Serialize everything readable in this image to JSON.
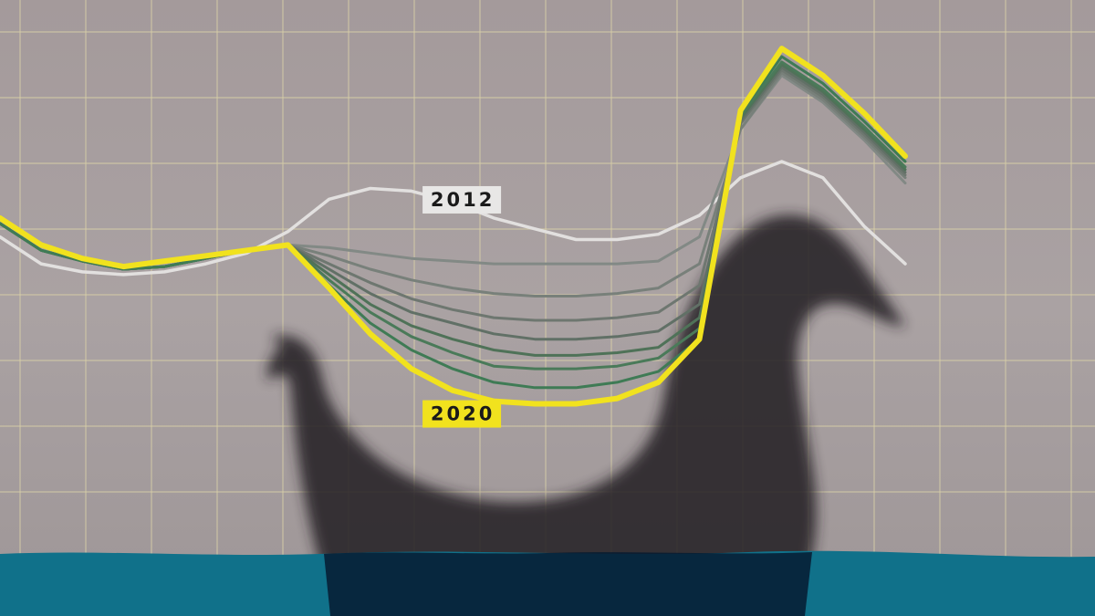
{
  "chart_data": {
    "type": "line",
    "title": "",
    "xlabel": "",
    "ylabel": "",
    "x": [
      0,
      1,
      2,
      3,
      4,
      5,
      6,
      7,
      8,
      9,
      10,
      11,
      12,
      13,
      14,
      15,
      16,
      17,
      18,
      19,
      20,
      21,
      22
    ],
    "xlim": [
      0,
      22
    ],
    "ylim": [
      0,
      100
    ],
    "grid": true,
    "legend": "none",
    "series": [
      {
        "name": "2012",
        "color": "#e2e0df",
        "label_at": 12,
        "values": [
          56.0,
          51.0,
          49.5,
          49.0,
          49.5,
          51.0,
          53.0,
          57.0,
          63.0,
          65.0,
          64.5,
          62.5,
          59.5,
          57.5,
          55.5,
          55.5,
          56.5,
          60.0,
          67.0,
          70.0,
          67.0,
          58.0,
          51.0
        ]
      },
      {
        "values": [
          58.5,
          53.5,
          51.5,
          50.0,
          50.5,
          52.0,
          53.5,
          54.5,
          54.0,
          53.0,
          52.0,
          51.5,
          51.0,
          51.0,
          51.0,
          51.0,
          51.5,
          56.0,
          76.0,
          86.0,
          81.0,
          74.0,
          66.0
        ],
        "color": "#828985"
      },
      {
        "values": [
          58.5,
          53.5,
          51.5,
          50.0,
          50.5,
          52.0,
          53.5,
          54.5,
          52.5,
          50.0,
          48.0,
          46.5,
          45.5,
          45.0,
          45.0,
          45.5,
          46.5,
          51.0,
          76.0,
          86.5,
          81.5,
          74.5,
          67.0
        ],
        "color": "#78807a"
      },
      {
        "values": [
          58.5,
          53.5,
          51.5,
          50.0,
          50.5,
          52.0,
          53.5,
          54.5,
          51.0,
          47.5,
          44.5,
          42.5,
          41.0,
          40.5,
          40.5,
          41.0,
          42.0,
          47.0,
          77.0,
          87.0,
          82.0,
          75.0,
          67.5
        ],
        "color": "#6e7770"
      },
      {
        "values": [
          58.5,
          53.5,
          51.5,
          50.0,
          50.5,
          52.0,
          53.5,
          54.5,
          50.0,
          45.5,
          42.0,
          40.0,
          38.0,
          37.0,
          37.0,
          37.5,
          38.5,
          43.5,
          77.5,
          87.5,
          82.5,
          75.5,
          68.0
        ],
        "color": "#617066"
      },
      {
        "values": [
          58.5,
          53.5,
          51.5,
          50.0,
          50.5,
          52.0,
          53.5,
          54.5,
          49.0,
          43.5,
          39.5,
          37.0,
          35.0,
          34.0,
          34.0,
          34.5,
          35.5,
          41.0,
          78.0,
          88.0,
          83.0,
          76.0,
          68.5
        ],
        "color": "#4f7258"
      },
      {
        "values": [
          58.5,
          53.5,
          51.5,
          50.0,
          50.5,
          52.0,
          53.5,
          54.5,
          48.0,
          42.0,
          37.5,
          34.5,
          32.0,
          31.5,
          31.5,
          32.0,
          33.5,
          39.0,
          78.5,
          88.5,
          83.5,
          76.5,
          69.0
        ],
        "color": "#4a7a59"
      },
      {
        "values": [
          58.5,
          53.5,
          51.5,
          50.0,
          50.5,
          52.0,
          53.5,
          54.5,
          47.0,
          40.0,
          35.0,
          31.5,
          29.0,
          28.0,
          28.0,
          29.0,
          31.0,
          37.0,
          79.0,
          89.5,
          84.5,
          77.5,
          70.0
        ],
        "color": "#3f7b55"
      },
      {
        "name": "2020",
        "color": "#f1e21e",
        "label_at": 12,
        "values": [
          59.5,
          54.5,
          52.0,
          50.5,
          51.5,
          52.5,
          53.5,
          54.5,
          46.5,
          38.0,
          31.5,
          27.5,
          25.5,
          25.0,
          25.0,
          26.0,
          29.0,
          37.0,
          79.5,
          91.0,
          86.0,
          79.0,
          71.0
        ]
      }
    ]
  },
  "colors": {
    "background": "#a79fa0",
    "water": "#10718a",
    "grid": "#d8cfa8",
    "label_2012_box": "#e8e7e6",
    "label_2020_box": "#f1e21e",
    "shadow": "#262326"
  },
  "decorations": [
    "duck-shadow",
    "water-band"
  ]
}
